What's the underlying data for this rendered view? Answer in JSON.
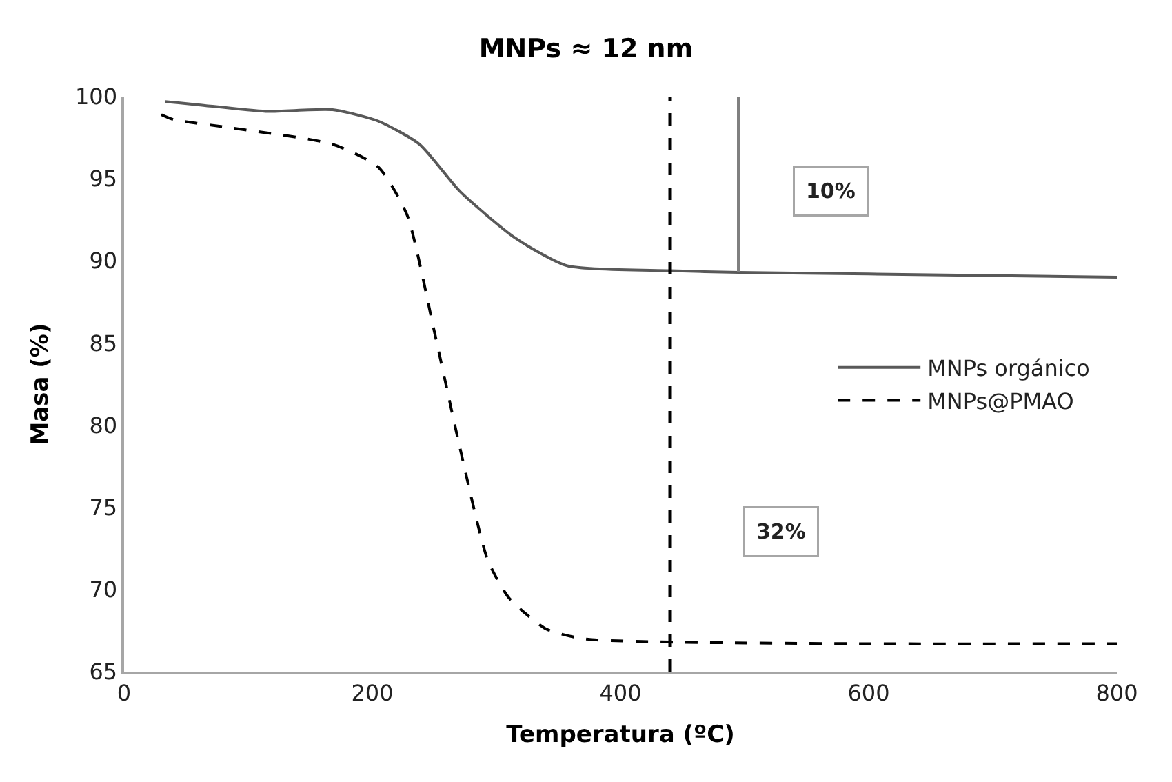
{
  "chart_data": {
    "type": "line",
    "title": "MNPs ≈ 12 nm",
    "xlabel": "Temperatura (ºC)",
    "ylabel": "Masa (%)",
    "xlim": [
      0,
      800
    ],
    "xticks": [
      0,
      200,
      400,
      600,
      800
    ],
    "ylim": [
      65,
      100
    ],
    "yticks": [
      65,
      70,
      75,
      80,
      85,
      90,
      95,
      100
    ],
    "legend": "right",
    "marker": "none",
    "series": [
      {
        "name": "MNPs orgánico",
        "color": "#595959",
        "line_style": "solid",
        "x": [
          33,
          60,
          114,
          168,
          205,
          238,
          271,
          315,
          357,
          440,
          495,
          600,
          800
        ],
        "values": [
          99.7,
          99.5,
          99.1,
          99.2,
          98.5,
          97.1,
          94.2,
          91.4,
          89.7,
          89.4,
          89.3,
          89.2,
          89.0
        ]
      },
      {
        "name": "MNPs@PMAO",
        "color": "#000000",
        "line_style": "dashed",
        "x": [
          30,
          40,
          86,
          168,
          205,
          228,
          250,
          271,
          293,
          310,
          340,
          370,
          440,
          600,
          800
        ],
        "values": [
          98.9,
          98.6,
          98.1,
          97.1,
          95.7,
          92.8,
          85.7,
          78.5,
          71.8,
          69.5,
          67.6,
          67.0,
          66.8,
          66.7,
          66.7
        ]
      },
      {
        "color": "#808080",
        "line_style": "solid",
        "x": [
          495,
          495
        ],
        "values": [
          89.3,
          100
        ]
      }
    ],
    "ref_lines": [
      {
        "axis": "x",
        "value": 440,
        "color": "#000000",
        "line_style": "dashed"
      }
    ],
    "annotations": [
      "10%",
      "32%"
    ]
  }
}
